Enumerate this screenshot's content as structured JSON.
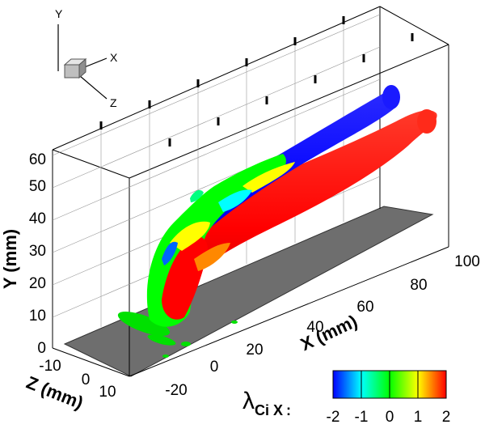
{
  "triad": {
    "y_label": "Y",
    "x_label": "X",
    "z_label": "Z"
  },
  "colorbar": {
    "symbol": "λ",
    "subscript": "Ci X",
    "suffix": ":",
    "colors": [
      "#0000ff",
      "#00ffff",
      "#00ff00",
      "#ffff00",
      "#ff0000"
    ],
    "tick_labels": [
      "-2",
      "-1",
      "0",
      "1",
      "2"
    ]
  },
  "chart_data": {
    "type": "3d-isosurface",
    "title": "",
    "xlabel": "X (mm)",
    "ylabel": "Y (mm)",
    "zlabel": "Z (mm)",
    "xlim": [
      -30,
      100
    ],
    "ylim": [
      0,
      65
    ],
    "zlim": [
      -15,
      15
    ],
    "x_ticks": [
      "-20",
      "0",
      "20",
      "40",
      "60",
      "80",
      "100"
    ],
    "y_ticks": [
      "0",
      "10",
      "20",
      "30",
      "40",
      "50",
      "60"
    ],
    "z_ticks": [
      "-10",
      "0",
      "10"
    ],
    "color_variable": "λCi X",
    "color_range": [
      -2,
      2
    ],
    "floor_color": "#6e6e6e",
    "grid": true
  }
}
